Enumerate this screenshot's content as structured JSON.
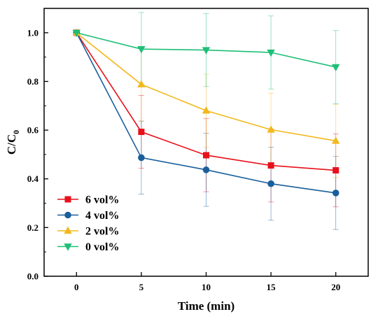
{
  "chart_data": {
    "type": "line",
    "title": "",
    "xlabel": "Time (min)",
    "ylabel_main": "C/C",
    "ylabel_sub": "0",
    "x": [
      0,
      5,
      10,
      15,
      20
    ],
    "x_ticks": [
      "0",
      "5",
      "10",
      "15",
      "20"
    ],
    "y_ticks": [
      "0.0",
      "0.2",
      "0.4",
      "0.6",
      "0.8",
      "1.0"
    ],
    "xlim": [
      -2.5,
      22.5
    ],
    "ylim": [
      0.0,
      1.1
    ],
    "grid": false,
    "legend_position": "bottom-left",
    "series": [
      {
        "name": "6 vol%",
        "color": "#e8101a",
        "marker": "square",
        "values": [
          1.0,
          0.593,
          0.497,
          0.455,
          0.435
        ],
        "errors": [
          0.0,
          0.15,
          0.15,
          0.15,
          0.15
        ]
      },
      {
        "name": "4 vol%",
        "color": "#1a5f9c",
        "marker": "circle",
        "values": [
          1.0,
          0.487,
          0.437,
          0.38,
          0.342
        ],
        "errors": [
          0.0,
          0.15,
          0.15,
          0.15,
          0.15
        ]
      },
      {
        "name": "2 vol%",
        "color": "#f2b81c",
        "marker": "triangle-up",
        "values": [
          1.0,
          0.788,
          0.68,
          0.602,
          0.556
        ],
        "errors": [
          0.0,
          0.15,
          0.15,
          0.15,
          0.15
        ]
      },
      {
        "name": "0 vol%",
        "color": "#1dbf76",
        "marker": "triangle-down",
        "values": [
          1.0,
          0.933,
          0.929,
          0.919,
          0.859
        ],
        "errors": [
          0.0,
          0.15,
          0.15,
          0.15,
          0.15
        ]
      }
    ]
  }
}
